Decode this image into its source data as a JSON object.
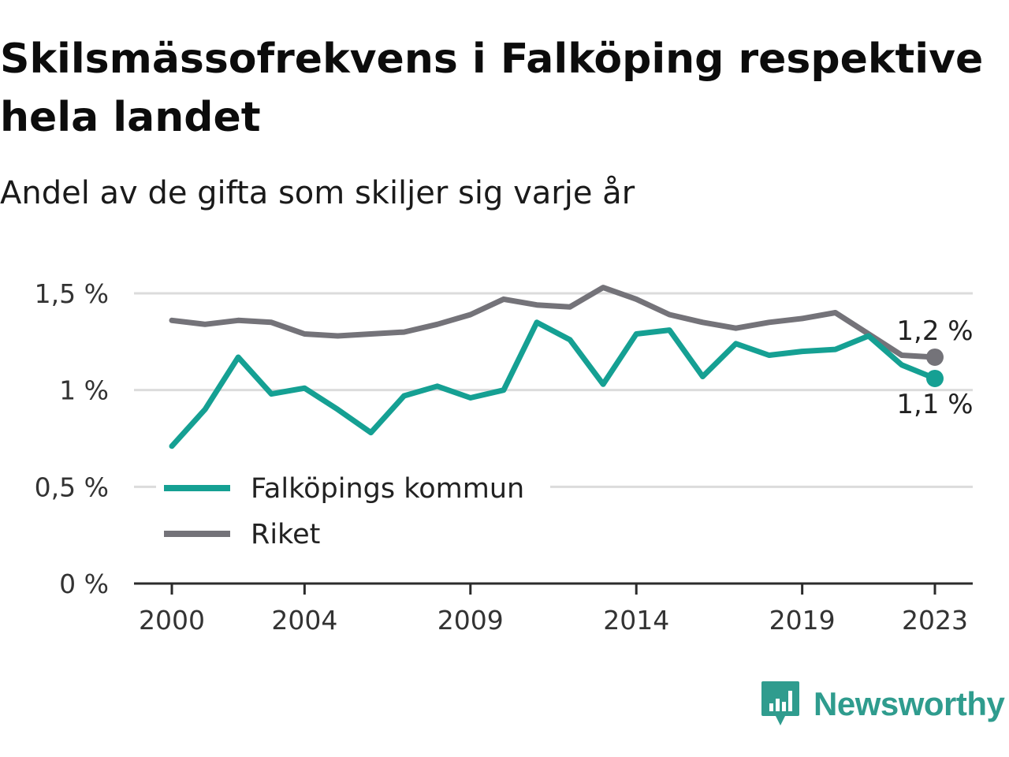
{
  "header": {
    "title": "Skilsmässofrekvens i Falköping respektive hela landet",
    "subtitle": "Andel av de gifta som skiljer sig varje år"
  },
  "brand": {
    "name": "Newsworthy",
    "color": "#2f9c8e"
  },
  "chart_data": {
    "type": "line",
    "title": "Skilsmässofrekvens i Falköping respektive hela landet",
    "subtitle": "Andel av de gifta som skiljer sig varje år",
    "x": [
      2000,
      2001,
      2002,
      2003,
      2004,
      2005,
      2006,
      2007,
      2008,
      2009,
      2010,
      2011,
      2012,
      2013,
      2014,
      2015,
      2016,
      2017,
      2018,
      2019,
      2020,
      2021,
      2022,
      2023
    ],
    "series": [
      {
        "name": "Falköpings kommun",
        "color": "#15a093",
        "values": [
          0.71,
          0.9,
          1.17,
          0.98,
          1.01,
          0.9,
          0.78,
          0.97,
          1.02,
          0.96,
          1.0,
          1.35,
          1.26,
          1.03,
          1.29,
          1.31,
          1.07,
          1.24,
          1.18,
          1.2,
          1.21,
          1.28,
          1.13,
          1.06
        ],
        "end_label": "1,1 %"
      },
      {
        "name": "Riket",
        "color": "#747379",
        "values": [
          1.36,
          1.34,
          1.36,
          1.35,
          1.29,
          1.28,
          1.29,
          1.3,
          1.34,
          1.39,
          1.47,
          1.44,
          1.43,
          1.53,
          1.47,
          1.39,
          1.35,
          1.32,
          1.35,
          1.37,
          1.4,
          1.29,
          1.18,
          1.17
        ],
        "end_label": "1,2 %"
      }
    ],
    "xticks": [
      2000,
      2004,
      2009,
      2014,
      2019,
      2023
    ],
    "xtick_labels": [
      "2000",
      "2004",
      "2009",
      "2014",
      "2019",
      "2023"
    ],
    "yticks": [
      0,
      0.5,
      1,
      1.5
    ],
    "ytick_labels": [
      "0 %",
      "0,5 %",
      "1 %",
      "1,5 %"
    ],
    "ylim": [
      0,
      1.5
    ],
    "xlim": [
      2000,
      2023
    ],
    "grid": true,
    "legend": "bottom-left inside"
  }
}
